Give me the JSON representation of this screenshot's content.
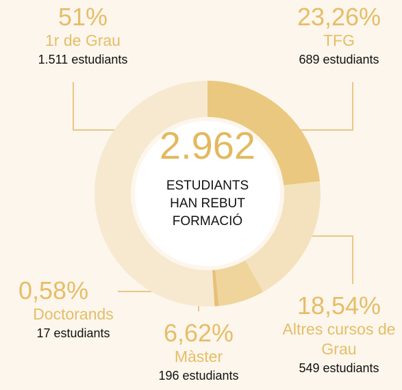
{
  "chart_data": {
    "type": "donut",
    "categories": [
      "TFG",
      "Altres cursos de Grau",
      "Màster",
      "Doctorands",
      "1r de Grau"
    ],
    "values": [
      23.26,
      18.54,
      6.62,
      0.58,
      51
    ],
    "value_labels": [
      "23,26%",
      "18,54%",
      "6,62%",
      "0,58%",
      "51%"
    ],
    "count_labels": [
      "689 estudiants",
      "549 estudiants",
      "196 estudiants",
      "17 estudiants",
      "1.511 estudiants"
    ],
    "colors": [
      "#ebc87f",
      "#f4e2be",
      "#efd49c",
      "#e7c074",
      "#f6e9cf"
    ],
    "center_value": "2.962",
    "center_text": [
      "ESTUDIANTS",
      "HAN REBUT",
      "FORMACIÓ"
    ]
  }
}
